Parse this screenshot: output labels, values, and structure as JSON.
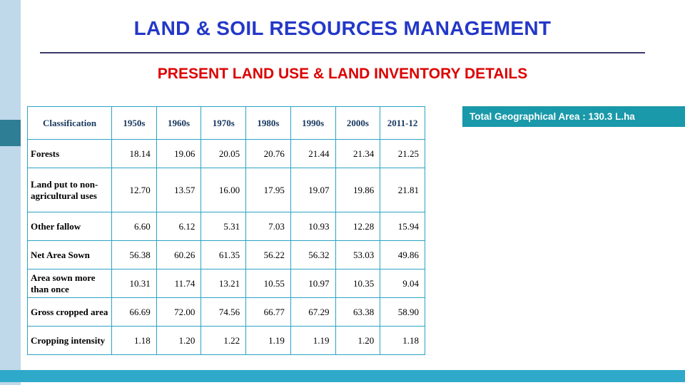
{
  "slide": {
    "title": "LAND & SOIL RESOURCES MANAGEMENT",
    "subtitle": "PRESENT LAND USE  & LAND INVENTORY DETAILS"
  },
  "badge": {
    "total_area": "Total Geographical Area :  130.3 L.ha"
  },
  "chart_data": {
    "type": "table",
    "title": "PRESENT LAND USE & LAND INVENTORY DETAILS",
    "columns": [
      "Classification",
      "1950s",
      "1960s",
      "1970s",
      "1980s",
      "1990s",
      "2000s",
      "2011-12"
    ],
    "rows": [
      {
        "label": "Forests",
        "values": [
          "18.14",
          "19.06",
          "20.05",
          "20.76",
          "21.44",
          "21.34",
          "21.25"
        ]
      },
      {
        "label": "Land put to non-agricultural uses",
        "values": [
          "12.70",
          "13.57",
          "16.00",
          "17.95",
          "19.07",
          "19.86",
          "21.81"
        ]
      },
      {
        "label": "Other fallow",
        "values": [
          "6.60",
          "6.12",
          "5.31",
          "7.03",
          "10.93",
          "12.28",
          "15.94"
        ]
      },
      {
        "label": "Net Area Sown",
        "values": [
          "56.38",
          "60.26",
          "61.35",
          "56.22",
          "56.32",
          "53.03",
          "49.86"
        ]
      },
      {
        "label": "Area sown more than once",
        "values": [
          "10.31",
          "11.74",
          "13.21",
          "10.55",
          "10.97",
          "10.35",
          "9.04"
        ]
      },
      {
        "label": "Gross cropped area",
        "values": [
          "66.69",
          "72.00",
          "74.56",
          "66.77",
          "67.29",
          "63.38",
          "58.90"
        ]
      },
      {
        "label": "Cropping intensity",
        "values": [
          "1.18",
          "1.20",
          "1.22",
          "1.19",
          "1.19",
          "1.20",
          "1.18"
        ]
      }
    ]
  },
  "colors": {
    "title_blue": "#2438C8",
    "subtitle_red": "#DD0000",
    "table_border": "#2BA3C4",
    "badge_teal": "#1999AA",
    "bottom_bar_teal": "#2FA9C9",
    "left_strip_blue": "#BFD9EA",
    "accent_square_teal": "#2E7E95"
  }
}
